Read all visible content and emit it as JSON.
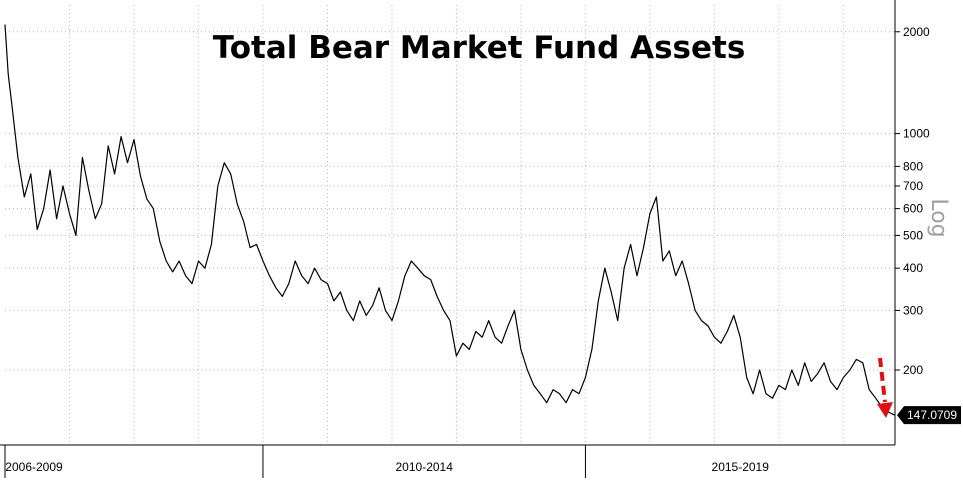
{
  "chart_data": {
    "type": "line",
    "title": "Total Bear Market Fund Assets",
    "scale_label": "Log",
    "y_scale": "log",
    "ylim": [
      120,
      2400
    ],
    "y_ticks": [
      200,
      300,
      400,
      500,
      600,
      700,
      800,
      1000,
      2000
    ],
    "x_periods": [
      "2006-2009",
      "2010-2014",
      "2015-2019"
    ],
    "xlim": [
      2006.0,
      2019.8
    ],
    "last_value": 147.0709,
    "last_value_label": "147.0709",
    "grid": true,
    "series": [
      {
        "x": [
          2006.0,
          2006.05,
          2006.1,
          2006.2,
          2006.3,
          2006.4,
          2006.5,
          2006.6,
          2006.7,
          2006.8,
          2006.9,
          2007.0,
          2007.1,
          2007.2,
          2007.3,
          2007.4,
          2007.5,
          2007.6,
          2007.7,
          2007.8,
          2007.9,
          2008.0,
          2008.1,
          2008.2,
          2008.3,
          2008.4,
          2008.5,
          2008.6,
          2008.7,
          2008.8,
          2008.9,
          2009.0,
          2009.1,
          2009.2,
          2009.3,
          2009.4,
          2009.5,
          2009.6,
          2009.7,
          2009.8,
          2009.9,
          2010.0,
          2010.1,
          2010.2,
          2010.3,
          2010.4,
          2010.5,
          2010.6,
          2010.7,
          2010.8,
          2010.9,
          2011.0,
          2011.1,
          2011.2,
          2011.3,
          2011.4,
          2011.5,
          2011.6,
          2011.7,
          2011.8,
          2011.9,
          2012.0,
          2012.1,
          2012.2,
          2012.3,
          2012.4,
          2012.5,
          2012.6,
          2012.7,
          2012.8,
          2012.9,
          2013.0,
          2013.1,
          2013.2,
          2013.3,
          2013.4,
          2013.5,
          2013.6,
          2013.7,
          2013.8,
          2013.9,
          2014.0,
          2014.1,
          2014.2,
          2014.3,
          2014.4,
          2014.5,
          2014.6,
          2014.7,
          2014.8,
          2014.9,
          2015.0,
          2015.1,
          2015.2,
          2015.3,
          2015.4,
          2015.5,
          2015.6,
          2015.7,
          2015.8,
          2015.9,
          2016.0,
          2016.1,
          2016.2,
          2016.3,
          2016.4,
          2016.5,
          2016.6,
          2016.7,
          2016.8,
          2016.9,
          2017.0,
          2017.1,
          2017.2,
          2017.3,
          2017.4,
          2017.5,
          2017.6,
          2017.7,
          2017.8,
          2017.9,
          2018.0,
          2018.1,
          2018.2,
          2018.3,
          2018.4,
          2018.5,
          2018.6,
          2018.7,
          2018.8,
          2018.9,
          2019.0,
          2019.1,
          2019.2,
          2019.3,
          2019.4,
          2019.5,
          2019.6,
          2019.7,
          2019.8
        ],
        "values": [
          2100,
          1500,
          1250,
          850,
          650,
          760,
          520,
          600,
          780,
          560,
          700,
          580,
          500,
          850,
          680,
          560,
          620,
          920,
          760,
          980,
          820,
          960,
          750,
          640,
          600,
          480,
          420,
          390,
          420,
          380,
          360,
          420,
          400,
          470,
          700,
          820,
          760,
          620,
          550,
          460,
          470,
          420,
          380,
          350,
          330,
          360,
          420,
          380,
          360,
          400,
          370,
          360,
          320,
          340,
          300,
          280,
          320,
          290,
          310,
          350,
          300,
          280,
          320,
          380,
          420,
          400,
          380,
          370,
          330,
          300,
          280,
          220,
          240,
          230,
          260,
          250,
          280,
          250,
          240,
          270,
          300,
          230,
          200,
          180,
          170,
          160,
          175,
          170,
          160,
          175,
          170,
          190,
          230,
          320,
          400,
          340,
          280,
          400,
          470,
          380,
          460,
          580,
          650,
          420,
          450,
          380,
          420,
          360,
          300,
          280,
          270,
          250,
          240,
          260,
          290,
          250,
          190,
          170,
          200,
          170,
          165,
          180,
          175,
          200,
          180,
          210,
          185,
          195,
          210,
          185,
          175,
          190,
          200,
          215,
          210,
          175,
          165,
          155,
          150,
          147
        ]
      }
    ]
  }
}
